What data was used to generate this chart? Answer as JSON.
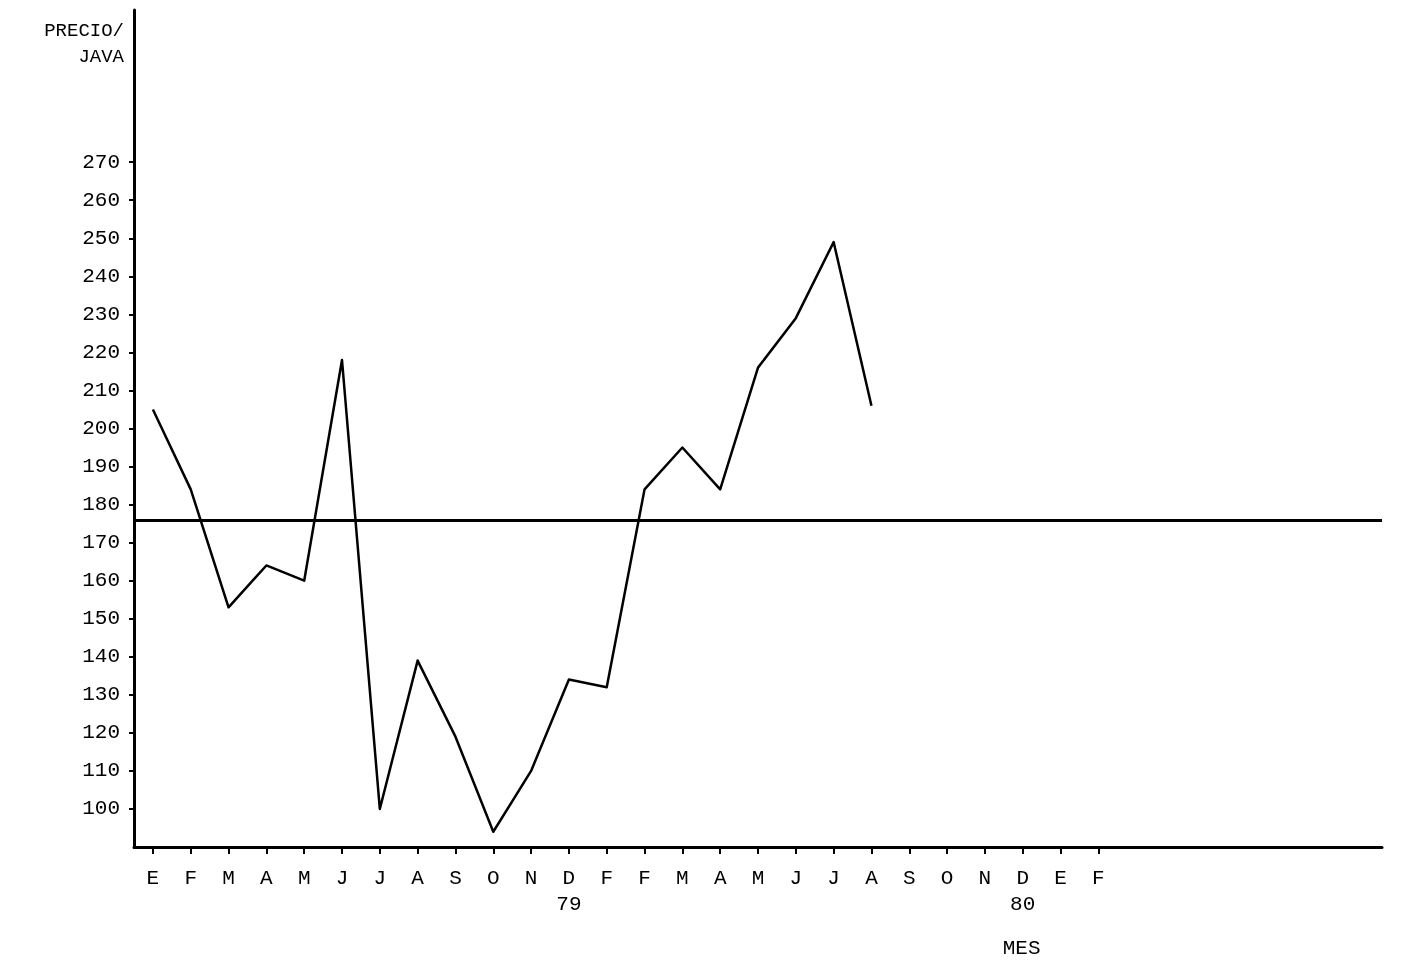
{
  "chart_data": {
    "type": "line",
    "ylabel": "PRECIO/\nJAVA",
    "xlabel": "MES",
    "categories": [
      "E",
      "F",
      "M",
      "A",
      "M",
      "J",
      "J",
      "A",
      "S",
      "O",
      "N",
      "D\n79",
      "F",
      "F",
      "M",
      "A",
      "M",
      "J",
      "J",
      "A",
      "S",
      "O",
      "N",
      "D\n80",
      "E",
      "F",
      null,
      null,
      null,
      null,
      null,
      null,
      null
    ],
    "series": [
      {
        "color": "#000000",
        "values": [
          205,
          184,
          153,
          164,
          160,
          218,
          100,
          139,
          119,
          94,
          110,
          134,
          132,
          184,
          195,
          184,
          216,
          229,
          249,
          206,
          null,
          null,
          null,
          null,
          null,
          null,
          null,
          null,
          null,
          null,
          null,
          null,
          null
        ]
      }
    ],
    "ylim": [
      90,
      310
    ],
    "yticks": [
      100,
      110,
      120,
      130,
      140,
      150,
      160,
      170,
      180,
      190,
      200,
      210,
      220,
      230,
      240,
      250,
      260,
      270
    ],
    "ref_lines": [
      {
        "axis": "y",
        "value": 176,
        "color": "#000000"
      }
    ],
    "grid": false,
    "marker": "none",
    "line_style": "solid"
  }
}
